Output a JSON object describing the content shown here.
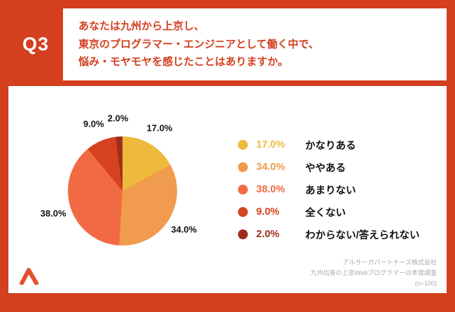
{
  "page": {
    "background_color": "#D33F1F",
    "card_color": "#FFFFFF"
  },
  "header": {
    "question_label": "Q3",
    "question_lines": [
      "あなたは九州から上京し、",
      "東京のプログラマー・エンジニアとして働く中で、",
      "悩み・モヤモヤを感じたことはありますか。"
    ]
  },
  "chart_data": {
    "type": "pie",
    "title": "あなたは九州から上京し、東京のプログラマー・エンジニアとして働く中で、悩み・モヤモヤを感じたことはありますか。",
    "direction": "clockwise",
    "start_angle_deg": 0,
    "legend_position": "right",
    "sample_size_label": "(n=100)",
    "slices": [
      {
        "label": "かなりある",
        "value": 17.0,
        "display": "17.0%",
        "color": "#EEBA3B"
      },
      {
        "label": "ややある",
        "value": 34.0,
        "display": "34.0%",
        "color": "#F09B4D"
      },
      {
        "label": "あまりない",
        "value": 38.0,
        "display": "38.0%",
        "color": "#F16A43"
      },
      {
        "label": "全くない",
        "value": 9.0,
        "display": "9.0%",
        "color": "#D64120"
      },
      {
        "label": "わからない/答えられない",
        "value": 2.0,
        "display": "2.0%",
        "color": "#9E2D1A"
      }
    ]
  },
  "footer": {
    "source_lines": [
      "アルサーガパートナーズ株式会社",
      "九州出身の上京Webプログラマーの本音調査",
      "(n=100)"
    ]
  }
}
